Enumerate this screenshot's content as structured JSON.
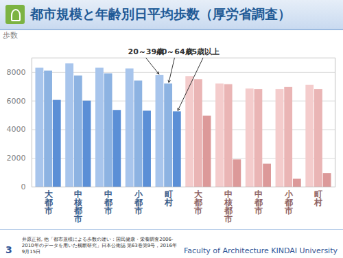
{
  "chart_data": {
    "type": "bar",
    "title": "都市規模と年齢別日平均歩数（厚労省調査）",
    "y_label": "歩数",
    "categories": [
      "大都市",
      "中核都市",
      "中都市",
      "小都市",
      "町村",
      "大都市",
      "中核都市",
      "中都市",
      "小都市",
      "町村"
    ],
    "series": [
      {
        "name": "20～39歳",
        "colors": [
          "#a8c5ec",
          "#a8c5ec",
          "#a8c5ec",
          "#a8c5ec",
          "#a8c5ec",
          "#f4cccc",
          "#f4cccc",
          "#f4cccc",
          "#f4cccc",
          "#f4cccc"
        ],
        "values": [
          8300,
          8600,
          8300,
          8250,
          7800,
          7700,
          7200,
          6850,
          6800,
          7100
        ]
      },
      {
        "name": "40～64歳",
        "colors": [
          "#8db3e2",
          "#8db3e2",
          "#8db3e2",
          "#8db3e2",
          "#8db3e2",
          "#eab5b5",
          "#eab5b5",
          "#eab5b5",
          "#eab5b5",
          "#eab5b5"
        ],
        "values": [
          8100,
          7750,
          7900,
          7400,
          7200,
          7500,
          7150,
          6800,
          6950,
          6800
        ]
      },
      {
        "name": "65歳以上",
        "colors": [
          "#5b8fd6",
          "#5b8fd6",
          "#5b8fd6",
          "#5b8fd6",
          "#5b8fd6",
          "#dc9999",
          "#dc9999",
          "#dc9999",
          "#dc9999",
          "#dc9999"
        ],
        "values": [
          6050,
          6000,
          5350,
          5300,
          5250,
          4950,
          1900,
          1600,
          550,
          950
        ]
      }
    ],
    "ylim": [
      0,
      9000
    ],
    "yticks": [
      0,
      2000,
      4000,
      6000,
      8000
    ],
    "grid": true,
    "page_number": 3,
    "source": "井原正裕, 他「都市規模による歩数の違い：国民健康・栄養調査2006-2010年のデータを用いた横断研究」日本公衛誌 第63巻第9号，2016年9月15日",
    "footer": "Faculty of Architecture  KINDAI University"
  }
}
